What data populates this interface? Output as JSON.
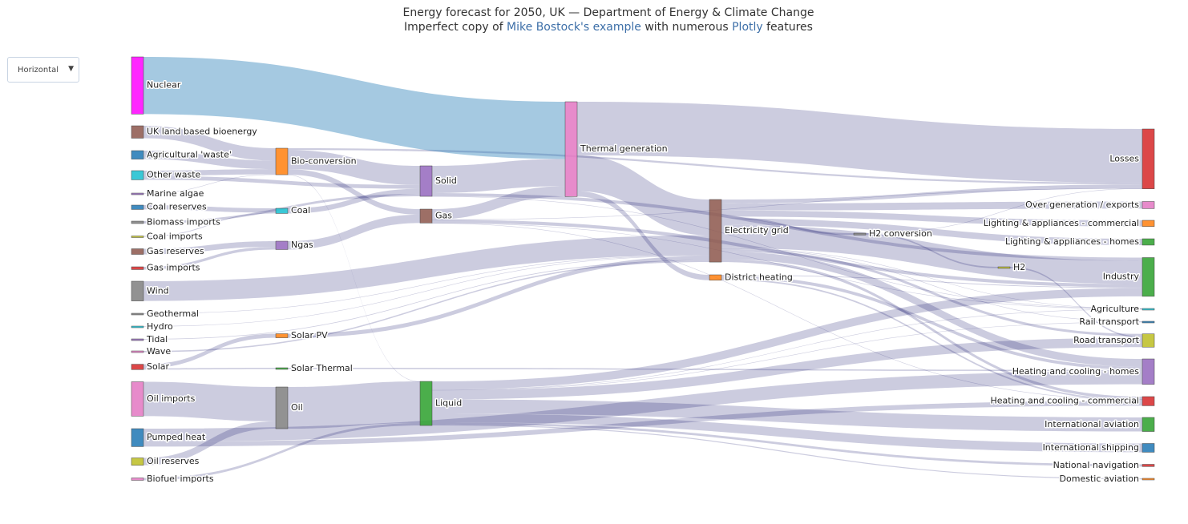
{
  "menu": {
    "label": "Horizontal"
  },
  "chart_data": {
    "type": "sankey",
    "title": "Energy forecast for 2050, UK — Department of Energy & Climate Change",
    "subtitle": [
      "Imperfect copy of ",
      "Mike Bostock's example",
      " with numerous ",
      "Plotly",
      " features"
    ],
    "nodes": {
      "label": [
        "Agricultural 'waste'",
        "Bio-conversion",
        "Liquid",
        "Losses",
        "Solid",
        "Gas",
        "Biofuel imports",
        "Biomass imports",
        "Coal imports",
        "Coal",
        "Coal reserves",
        "District heating",
        "Industry",
        "Heating and cooling - commercial",
        "Heating and cooling - homes",
        "Electricity grid",
        "Over generation / exports",
        "H2 conversion",
        "Road transport",
        "Agriculture",
        "Rail transport",
        "Lighting & appliances - commercial",
        "Lighting & appliances - homes",
        "Gas imports",
        "Ngas",
        "Gas reserves",
        "Thermal generation",
        "Geothermal",
        "H2",
        "Hydro",
        "International shipping",
        "Domestic aviation",
        "International aviation",
        "National navigation",
        "Marine algae",
        "Nuclear",
        "Oil imports",
        "Oil",
        "Oil reserves",
        "Other waste",
        "Pumped heat",
        "Solar PV",
        "Solar Thermal",
        "Solar",
        "Tidal",
        "UK land based bioenergy",
        "Wave",
        "Wind"
      ],
      "color": [
        "#1f77b4",
        "#ff7f0e",
        "#2ca02c",
        "#d62728",
        "#9467bd",
        "#8c564b",
        "#e377c2",
        "#7f7f7f",
        "#bcbd22",
        "#17becf",
        "#1f77b4",
        "#ff7f0e",
        "#2ca02c",
        "#d62728",
        "#9467bd",
        "#8c564b",
        "#e377c2",
        "#7f7f7f",
        "#bcbd22",
        "#17becf",
        "#1f77b4",
        "#ff7f0e",
        "#2ca02c",
        "#d62728",
        "#9467bd",
        "#8c564b",
        "#e377c2",
        "#7f7f7f",
        "#bcbd22",
        "#17becf",
        "#1f77b4",
        "#ff7f0e",
        "#2ca02c",
        "#d62728",
        "#9467bd",
        "#ff00ff",
        "#e377c2",
        "#7f7f7f",
        "#bcbd22",
        "#17becf",
        "#1f77b4",
        "#ff7f0e",
        "#2ca02c",
        "#d62728",
        "#9467bd",
        "#8c564b",
        "#e377c2",
        "#7f7f7f"
      ]
    },
    "links": {
      "source": [
        0,
        1,
        1,
        1,
        1,
        6,
        7,
        8,
        10,
        9,
        11,
        11,
        11,
        15,
        15,
        15,
        15,
        15,
        15,
        15,
        15,
        15,
        15,
        15,
        23,
        25,
        5,
        5,
        5,
        5,
        5,
        27,
        17,
        17,
        28,
        29,
        2,
        2,
        2,
        2,
        2,
        2,
        2,
        2,
        34,
        24,
        35,
        36,
        38,
        37,
        39,
        39,
        40,
        40,
        41,
        42,
        43,
        43,
        4,
        4,
        4,
        26,
        26,
        26,
        44,
        45,
        46,
        47
      ],
      "target": [
        1,
        2,
        3,
        4,
        5,
        2,
        4,
        9,
        9,
        4,
        12,
        13,
        14,
        16,
        14,
        17,
        12,
        18,
        19,
        13,
        3,
        20,
        21,
        22,
        24,
        24,
        13,
        3,
        26,
        19,
        12,
        15,
        28,
        3,
        18,
        15,
        12,
        30,
        18,
        31,
        32,
        19,
        33,
        20,
        1,
        5,
        26,
        37,
        37,
        2,
        4,
        1,
        14,
        13,
        15,
        14,
        42,
        41,
        19,
        26,
        12,
        15,
        3,
        11,
        15,
        1,
        15,
        15
      ],
      "value": [
        124.729,
        0.597,
        26.862,
        280.322,
        81.144,
        35,
        35,
        11.606,
        63.965,
        75.571,
        10.639,
        22.505,
        46.184,
        104.453,
        113.726,
        27.14,
        342.165,
        37.797,
        4.412,
        40.858,
        56.691,
        7.863,
        90.008,
        93.494,
        40.719,
        82.233,
        0.129,
        1.401,
        151.891,
        2.096,
        48.58,
        7.013,
        20.897,
        6.242,
        20.897,
        6.995,
        121.066,
        128.69,
        135.835,
        14.458,
        206.267,
        3.64,
        33.218,
        4.413,
        4.375,
        122.952,
        839.978,
        504.287,
        107.703,
        611.99,
        56.587,
        77.81,
        193.026,
        70.672,
        59.901,
        19.263,
        19.263,
        59.901,
        0.882,
        400.12,
        46.477,
        525.531,
        787.129,
        79.329,
        9.452,
        182.01,
        19.013,
        289.366
      ],
      "color": [
        "#00006033",
        "#00006033",
        "#00006033",
        "#00006033",
        "#00006033",
        "#00006033",
        "#00006033",
        "#00006033",
        "#00006033",
        "#00006033",
        "#00006033",
        "#00006033",
        "#00006033",
        "#00006033",
        "#00006033",
        "#00006033",
        "#00006033",
        "#00006033",
        "#00006033",
        "#00006033",
        "#00006033",
        "#00006033",
        "#00006033",
        "#00006033",
        "#00006033",
        "#00006033",
        "#00006033",
        "#00006033",
        "#00006033",
        "#00006033",
        "#00006033",
        "#00006033",
        "#00006033",
        "#00006033",
        "#00006033",
        "#00006033",
        "#00006033",
        "#00006033",
        "#00006033",
        "#00006033",
        "#00006033",
        "#00006033",
        "#00006033",
        "#00006033",
        "#00006033",
        "#00006033",
        "#1f77b466",
        "#00006033",
        "#00006033",
        "#00006033",
        "#00006033",
        "#00006033",
        "#00006033",
        "#00006033",
        "#00006033",
        "#00006033",
        "#00006033",
        "#00006033",
        "#00006033",
        "#00006033",
        "#00006033",
        "#00006033",
        "#00006033",
        "#00006033",
        "#00006033",
        "#00006033",
        "#00006033",
        "#00006033"
      ]
    }
  }
}
